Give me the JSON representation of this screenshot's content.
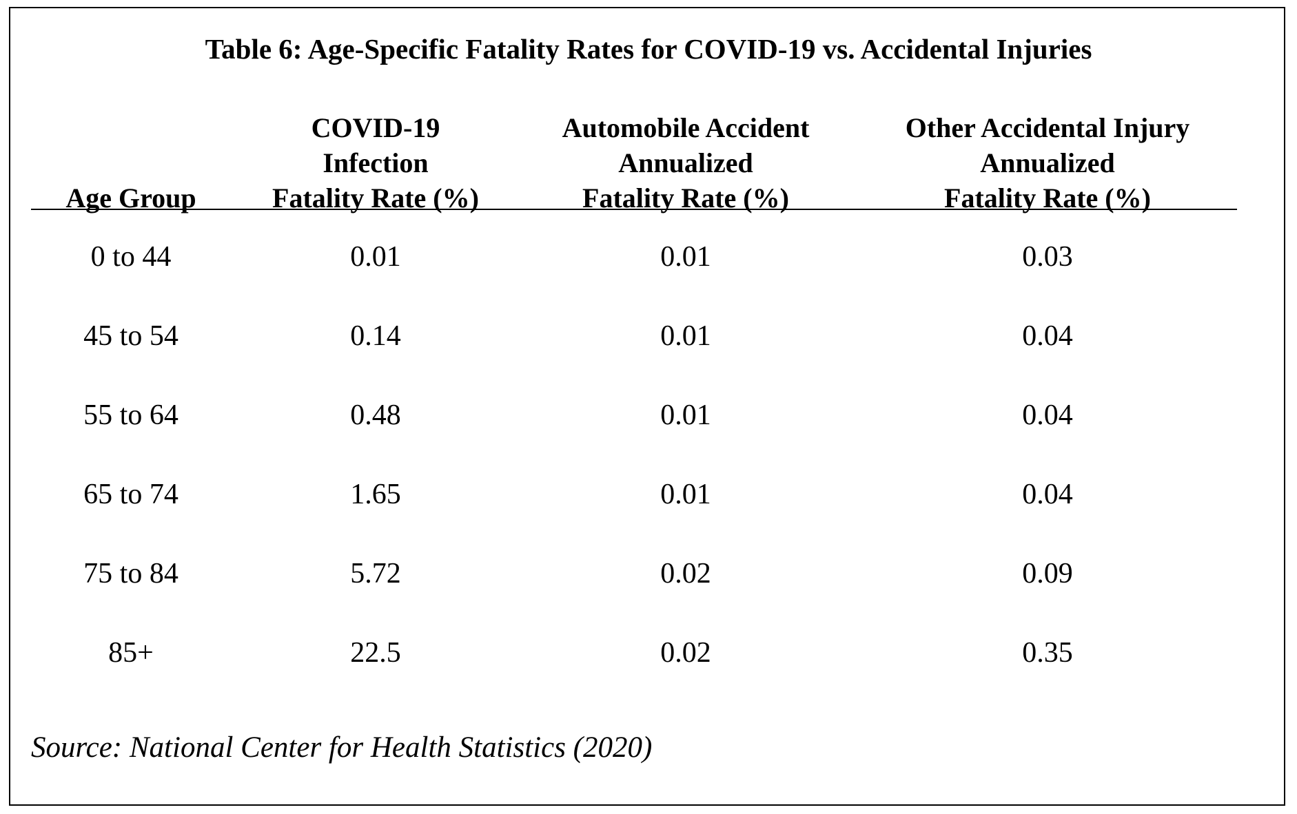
{
  "title": "Table 6: Age-Specific Fatality Rates for COVID-19 vs. Accidental Injuries",
  "columns": [
    {
      "lines": [
        "Age Group"
      ]
    },
    {
      "lines": [
        "COVID-19",
        "Infection",
        "Fatality Rate (%)"
      ]
    },
    {
      "lines": [
        "Automobile Accident",
        "Annualized",
        "Fatality Rate (%)"
      ]
    },
    {
      "lines": [
        "Other Accidental Injury",
        "Annualized",
        "Fatality Rate (%)"
      ]
    }
  ],
  "rows": [
    {
      "age_group": "0 to 44",
      "covid": "0.01",
      "auto": "0.01",
      "other": "0.03"
    },
    {
      "age_group": "45 to 54",
      "covid": "0.14",
      "auto": "0.01",
      "other": "0.04"
    },
    {
      "age_group": "55 to 64",
      "covid": "0.48",
      "auto": "0.01",
      "other": "0.04"
    },
    {
      "age_group": "65 to 74",
      "covid": "1.65",
      "auto": "0.01",
      "other": "0.04"
    },
    {
      "age_group": "75 to 84",
      "covid": "5.72",
      "auto": "0.02",
      "other": "0.09"
    },
    {
      "age_group": "85+",
      "covid": "22.5",
      "auto": "0.02",
      "other": "0.35"
    }
  ],
  "source": "Source: National Center for Health Statistics (2020)"
}
